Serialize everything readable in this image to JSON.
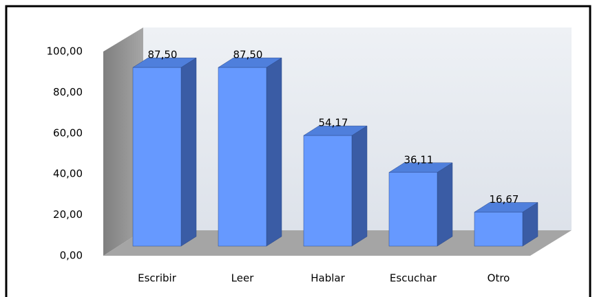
{
  "chart_data": {
    "type": "bar3d",
    "categories": [
      "Escribir",
      "Leer",
      "Hablar",
      "Escuchar",
      "Otro"
    ],
    "values": [
      87.5,
      87.5,
      54.17,
      36.11,
      16.67
    ],
    "value_labels": [
      "87,50",
      "87,50",
      "54,17",
      "36,11",
      "16,67"
    ],
    "color": "#6699ff",
    "ylim": [
      0,
      100
    ],
    "yticks": [
      {
        "value": 0,
        "label": "0,00"
      },
      {
        "value": 20,
        "label": "20,00"
      },
      {
        "value": 40,
        "label": "40,00"
      },
      {
        "value": 60,
        "label": "60,00"
      },
      {
        "value": 80,
        "label": "80,00"
      },
      {
        "value": 100,
        "label": "100,00"
      }
    ],
    "grid": false
  }
}
